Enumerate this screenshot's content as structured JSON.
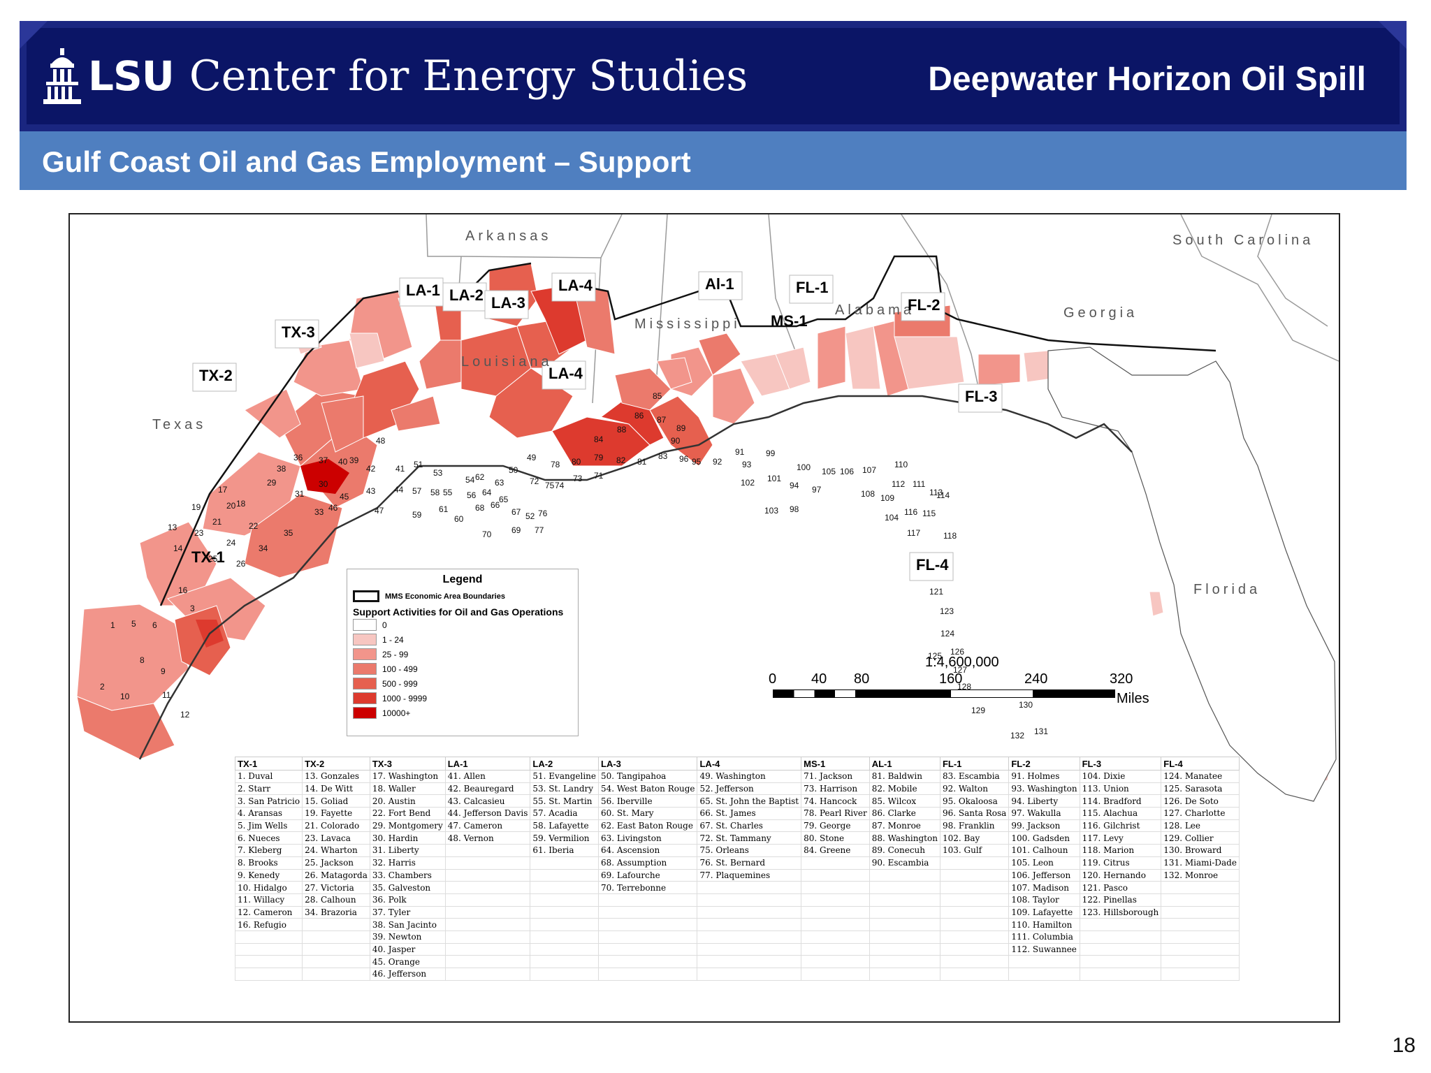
{
  "header": {
    "brand": "LSU",
    "org_title": "Center for Energy Studies",
    "deck_title": "Deepwater Horizon Oil Spill"
  },
  "subtitle": "Gulf Coast Oil and Gas Employment – Support",
  "page_number": "18",
  "map": {
    "state_labels": [
      "Arkansas",
      "Mississippi",
      "Louisiana",
      "Texas",
      "Alabama",
      "Georgia",
      "South Carolina",
      "Florida"
    ],
    "area_labels": [
      "TX-1",
      "TX-2",
      "TX-3",
      "LA-1",
      "LA-2",
      "LA-3",
      "LA-4",
      "LA-4",
      "MS-1",
      "Al-1",
      "FL-1",
      "FL-2",
      "FL-3",
      "FL-4"
    ],
    "colors": {
      "c0": "#ffffff",
      "c1": "#f7c6c1",
      "c2": "#f2958b",
      "c3": "#eb7a6c",
      "c4": "#e6604f",
      "c5": "#dd3a2e",
      "c6": "#cc0000"
    },
    "scale": {
      "ratio": "1:4,600,000",
      "ticks": [
        "0",
        "40",
        "80",
        "160",
        "240",
        "320"
      ],
      "unit": "Miles"
    }
  },
  "legend": {
    "title": "Legend",
    "boundary_label": "MMS Economic Area Boundaries",
    "heading": "Support Activities for Oil and Gas Operations",
    "classes": [
      {
        "label": "0",
        "color": "#ffffff"
      },
      {
        "label": "1 - 24",
        "color": "#f7c6c1"
      },
      {
        "label": "25 - 99",
        "color": "#f2958b"
      },
      {
        "label": "100 - 499",
        "color": "#eb7a6c"
      },
      {
        "label": "500 - 999",
        "color": "#e6604f"
      },
      {
        "label": "1000 - 9999",
        "color": "#dd3a2e"
      },
      {
        "label": "10000+",
        "color": "#cc0000"
      }
    ]
  },
  "county_table": {
    "headers": [
      "TX-1",
      "TX-2",
      "TX-3",
      "LA-1",
      "LA-2",
      "LA-3",
      "LA-4",
      "MS-1",
      "AL-1",
      "FL-1",
      "FL-2",
      "FL-3",
      "FL-4"
    ],
    "columns": [
      [
        "1. Duval",
        "2. Starr",
        "3. San Patricio",
        "4. Aransas",
        "5. Jim Wells",
        "6. Nueces",
        "7. Kleberg",
        "8. Brooks",
        "9. Kenedy",
        "10. Hidalgo",
        "11. Willacy",
        "12. Cameron",
        "16. Refugio"
      ],
      [
        "13. Gonzales",
        "14. De Witt",
        "15. Goliad",
        "19. Fayette",
        "21. Colorado",
        "23. Lavaca",
        "24. Wharton",
        "25. Jackson",
        "26. Matagorda",
        "27. Victoria",
        "28. Calhoun",
        "34. Brazoria"
      ],
      [
        "17. Washington",
        "18. Waller",
        "20. Austin",
        "22. Fort Bend",
        "29. Montgomery",
        "30. Hardin",
        "31. Liberty",
        "32. Harris",
        "33. Chambers",
        "35. Galveston",
        "36. Polk",
        "37. Tyler",
        "38. San Jacinto",
        "39. Newton",
        "40. Jasper",
        "45. Orange",
        "46. Jefferson"
      ],
      [
        "41. Allen",
        "42. Beauregard",
        "43. Calcasieu",
        "44. Jefferson Davis",
        "47. Cameron",
        "48. Vernon"
      ],
      [
        "51. Evangeline",
        "53. St. Landry",
        "55. St. Martin",
        "57. Acadia",
        "58. Lafayette",
        "59. Vermilion",
        "61. Iberia"
      ],
      [
        "50. Tangipahoa",
        "54. West Baton Rouge",
        "56. Iberville",
        "60. St. Mary",
        "62. East Baton Rouge",
        "63. Livingston",
        "64. Ascension",
        "68. Assumption",
        "69. Lafourche",
        "70. Terrebonne"
      ],
      [
        "49. Washington",
        "52. Jefferson",
        "65. St. John the Baptist",
        "66. St. James",
        "67. St. Charles",
        "72. St. Tammany",
        "75. Orleans",
        "76. St. Bernard",
        "77. Plaquemines"
      ],
      [
        "71. Jackson",
        "73. Harrison",
        "74. Hancock",
        "78. Pearl River",
        "79. George",
        "80. Stone",
        "84. Greene"
      ],
      [
        "81. Baldwin",
        "82. Mobile",
        "85. Wilcox",
        "86. Clarke",
        "87. Monroe",
        "88. Washington",
        "89. Conecuh",
        "90. Escambia"
      ],
      [
        "83. Escambia",
        "92. Walton",
        "95. Okaloosa",
        "96. Santa Rosa",
        "98. Franklin",
        "102. Bay",
        "103. Gulf"
      ],
      [
        "91. Holmes",
        "93. Washington",
        "94. Liberty",
        "97. Wakulla",
        "99. Jackson",
        "100. Gadsden",
        "101. Calhoun",
        "105. Leon",
        "106. Jefferson",
        "107. Madison",
        "108. Taylor",
        "109. Lafayette",
        "110. Hamilton",
        "111. Columbia",
        "112. Suwannee"
      ],
      [
        "104. Dixie",
        "113. Union",
        "114. Bradford",
        "115. Alachua",
        "116. Gilchrist",
        "117. Levy",
        "118. Marion",
        "119. Citrus",
        "120. Hernando",
        "121. Pasco",
        "122. Pinellas",
        "123. Hillsborough"
      ],
      [
        "124. Manatee",
        "125. Sarasota",
        "126. De Soto",
        "127. Charlotte",
        "128. Lee",
        "129. Collier",
        "130. Broward",
        "131. Miami-Dade",
        "132. Monroe"
      ]
    ]
  }
}
